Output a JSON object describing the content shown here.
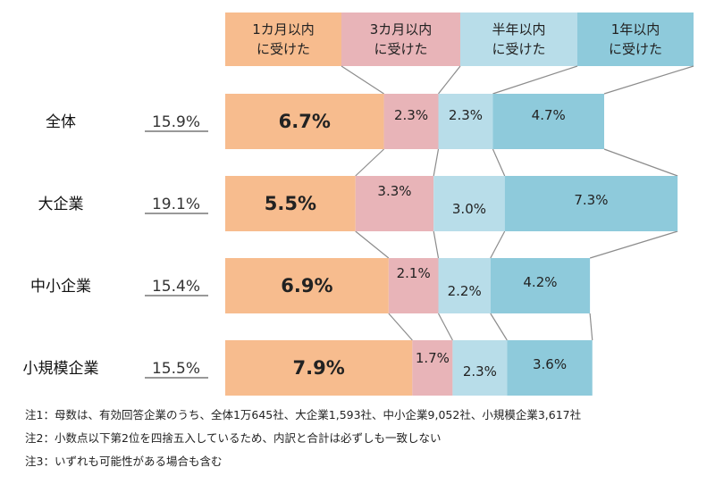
{
  "chart_data": {
    "type": "bar",
    "stacked": true,
    "orientation": "horizontal",
    "legend_position": "top",
    "series": [
      {
        "name": "1カ月以内\nに受けた",
        "color": "#f7bc8e"
      },
      {
        "name": "3カ月以内\nに受けた",
        "color": "#e8b4b8"
      },
      {
        "name": "半年以内\nに受けた",
        "color": "#b8dde9"
      },
      {
        "name": "1年以内\nに受けた",
        "color": "#8ecadb"
      }
    ],
    "categories": [
      {
        "label": "全体",
        "total": "15.9%",
        "values": [
          6.7,
          2.3,
          2.3,
          4.7
        ],
        "value_labels": [
          "6.7%",
          "2.3%",
          "2.3%",
          "4.7%"
        ]
      },
      {
        "label": "大企業",
        "total": "19.1%",
        "values": [
          5.5,
          3.3,
          3.0,
          7.3
        ],
        "value_labels": [
          "5.5%",
          "3.3%",
          "3.0%",
          "7.3%"
        ]
      },
      {
        "label": "中小企業",
        "total": "15.4%",
        "values": [
          6.9,
          2.1,
          2.2,
          4.2
        ],
        "value_labels": [
          "6.9%",
          "2.1%",
          "2.2%",
          "4.2%"
        ]
      },
      {
        "label": "小規模企業",
        "total": "15.5%",
        "values": [
          7.9,
          1.7,
          2.3,
          3.6
        ],
        "value_labels": [
          "7.9%",
          "1.7%",
          "2.3%",
          "3.6%"
        ]
      }
    ]
  },
  "notes": [
    "注1：母数は、有効回答企業のうち、全体1万645社、大企業1,593社、中小企業9,052社、小規模企業3,617社",
    "注2：小数点以下第2位を四捨五入しているため、内訳と合計は必ずしも一致しない",
    "注3：いずれも可能性がある場合も含む"
  ]
}
